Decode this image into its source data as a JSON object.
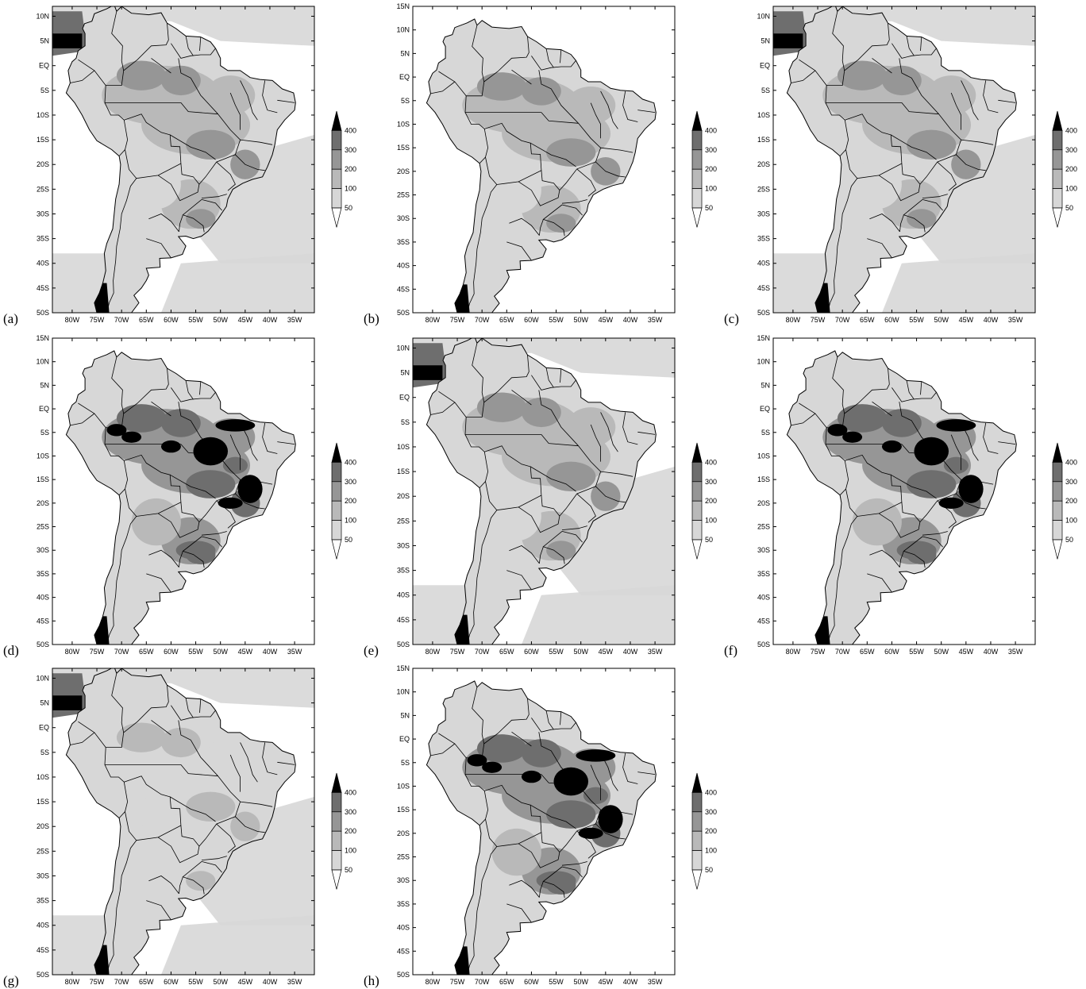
{
  "axes": {
    "lon_ticks": [
      "80W",
      "75W",
      "70W",
      "65W",
      "60W",
      "55W",
      "50W",
      "45W",
      "40W",
      "35W"
    ],
    "lat_ticks_15n": [
      "15N",
      "10N",
      "5N",
      "EQ",
      "5S",
      "10S",
      "15S",
      "20S",
      "25S",
      "30S",
      "35S",
      "40S",
      "45S",
      "50S"
    ],
    "lat_ticks_10n": [
      "10N",
      "5N",
      "EQ",
      "5S",
      "10S",
      "15S",
      "20S",
      "25S",
      "30S",
      "35S",
      "40S",
      "45S",
      "50S"
    ]
  },
  "colorbar": {
    "ticks": [
      "400",
      "300",
      "200",
      "100",
      "50"
    ],
    "colors": [
      "#000000",
      "#6e6e6e",
      "#969696",
      "#b9b9b9",
      "#d7d7d7",
      "#ffffff"
    ]
  },
  "panels": [
    {
      "label": "(a)",
      "lat_range": "10n",
      "ocean_shading": "heavy",
      "land_intensity": "moderate"
    },
    {
      "label": "(b)",
      "lat_range": "15n",
      "ocean_shading": "none",
      "land_intensity": "moderate"
    },
    {
      "label": "(c)",
      "lat_range": "10n",
      "ocean_shading": "heavy",
      "land_intensity": "moderate"
    },
    {
      "label": "(d)",
      "lat_range": "15n",
      "ocean_shading": "none",
      "land_intensity": "high"
    },
    {
      "label": "(e)",
      "lat_range": "10n",
      "ocean_shading": "heavy",
      "land_intensity": "moderate"
    },
    {
      "label": "(f)",
      "lat_range": "15n",
      "ocean_shading": "none",
      "land_intensity": "high"
    },
    {
      "label": "(g)",
      "lat_range": "10n",
      "ocean_shading": "heavy",
      "land_intensity": "low"
    },
    {
      "label": "(h)",
      "lat_range": "15n",
      "ocean_shading": "none",
      "land_intensity": "high"
    }
  ]
}
